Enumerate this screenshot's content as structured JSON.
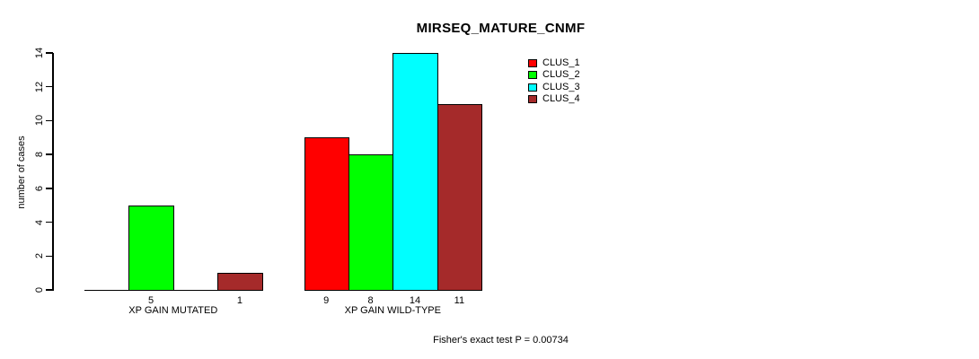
{
  "chart_data": {
    "type": "bar",
    "title": "MIRSEQ_MATURE_CNMF",
    "ylabel": "number of cases",
    "ylim": [
      0,
      14
    ],
    "yticks": [
      0,
      2,
      4,
      6,
      8,
      10,
      12,
      14
    ],
    "grid": false,
    "legend_position": "top-right",
    "categories": [
      "XP GAIN MUTATED",
      "XP GAIN WILD-TYPE"
    ],
    "series": [
      {
        "name": "CLUS_1",
        "color": "#FF0000",
        "values": [
          0,
          9
        ]
      },
      {
        "name": "CLUS_2",
        "color": "#00FF00",
        "values": [
          5,
          8
        ]
      },
      {
        "name": "CLUS_3",
        "color": "#00FFFF",
        "values": [
          0,
          14
        ]
      },
      {
        "name": "CLUS_4",
        "color": "#A52A2A",
        "values": [
          1,
          11
        ]
      }
    ],
    "bar_value_labels": [
      [
        null,
        "5",
        null,
        "1"
      ],
      [
        "9",
        "8",
        "14",
        "11"
      ]
    ],
    "annotation": "Fisher's exact test P = 0.00734"
  }
}
